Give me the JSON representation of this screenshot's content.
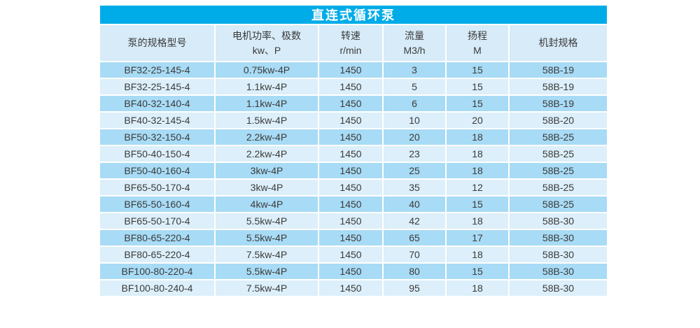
{
  "page": {
    "title_bar": "直连式循环泵"
  },
  "table": {
    "columns": [
      {
        "main": "泵的规格型号",
        "sub": ""
      },
      {
        "main": "电机功率、极数",
        "sub": "kw、P"
      },
      {
        "main": "转速",
        "sub": "r/min"
      },
      {
        "main": "流量",
        "sub": "M3/h"
      },
      {
        "main": "扬程",
        "sub": "M"
      },
      {
        "main": "机封规格",
        "sub": ""
      }
    ],
    "rows": [
      [
        "BF32-25-145-4",
        "0.75kw-4P",
        "1450",
        "3",
        "15",
        "58B-19"
      ],
      [
        "BF32-25-145-4",
        "1.1kw-4P",
        "1450",
        "5",
        "15",
        "58B-19"
      ],
      [
        "BF40-32-140-4",
        "1.1kw-4P",
        "1450",
        "6",
        "15",
        "58B-19"
      ],
      [
        "BF40-32-145-4",
        "1.5kw-4P",
        "1450",
        "10",
        "20",
        "58B-20"
      ],
      [
        "BF50-32-150-4",
        "2.2kw-4P",
        "1450",
        "20",
        "18",
        "58B-25"
      ],
      [
        "BF50-40-150-4",
        "2.2kw-4P",
        "1450",
        "23",
        "18",
        "58B-25"
      ],
      [
        "BF50-40-160-4",
        "3kw-4P",
        "1450",
        "25",
        "18",
        "58B-25"
      ],
      [
        "BF65-50-170-4",
        "3kw-4P",
        "1450",
        "35",
        "12",
        "58B-25"
      ],
      [
        "BF65-50-160-4",
        "4kw-4P",
        "1450",
        "40",
        "15",
        "58B-25"
      ],
      [
        "BF65-50-170-4",
        "5.5kw-4P",
        "1450",
        "42",
        "18",
        "58B-30"
      ],
      [
        "BF80-65-220-4",
        "5.5kw-4P",
        "1450",
        "65",
        "17",
        "58B-30"
      ],
      [
        "BF80-65-220-4",
        "7.5kw-4P",
        "1450",
        "70",
        "18",
        "58B-30"
      ],
      [
        "BF100-80-220-4",
        "5.5kw-4P",
        "1450",
        "80",
        "15",
        "58B-30"
      ],
      [
        "BF100-80-240-4",
        "7.5kw-4P",
        "1450",
        "95",
        "18",
        "58B-30"
      ]
    ],
    "column_names": [
      "model",
      "power",
      "speed",
      "flow",
      "head",
      "seal"
    ]
  },
  "colors": {
    "accent_cyan": "#00ACE8",
    "header_row_bg": "#D7EBF8",
    "odd_row_bg": "#A8DBF5",
    "even_row_bg": "#DCEFFA",
    "text": "#3B3B3B",
    "title_text": "#FFFFFF"
  }
}
